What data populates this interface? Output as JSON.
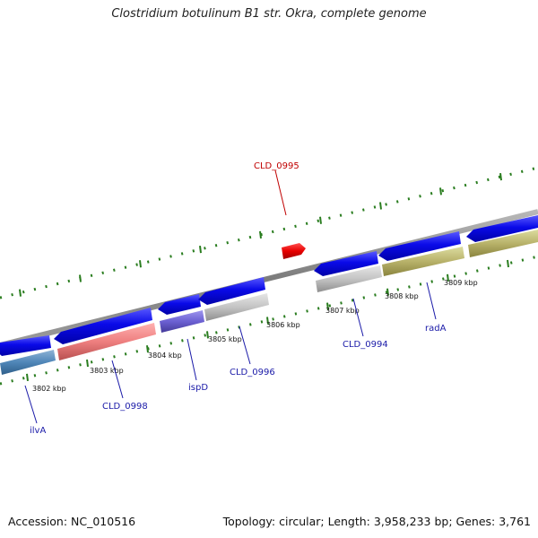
{
  "title": "Clostridium botulinum B1 str. Okra, complete genome",
  "accession": "Accession: NC_010516",
  "summary": "Topology: circular; Length: 3,958,233 bp; Genes: 3,761",
  "colors": {
    "backbone": "#8a8a8a",
    "tick": "#2a7d1f",
    "cds": "#0a0ae8",
    "highlight": "#e80000",
    "forward_label": "#c00000",
    "reverse_label": "#1a1aa8"
  },
  "kbp_labels": [
    "3802 kbp",
    "3803 kbp",
    "3804 kbp",
    "3805 kbp",
    "3806 kbp",
    "3807 kbp",
    "3808 kbp",
    "3809 kbp"
  ],
  "gene_labels": [
    {
      "name": "CLD_0995",
      "strand": "forward"
    },
    {
      "name": "ilvA",
      "strand": "reverse"
    },
    {
      "name": "CLD_0998",
      "strand": "reverse"
    },
    {
      "name": "ispD",
      "strand": "reverse"
    },
    {
      "name": "CLD_0996",
      "strand": "reverse"
    },
    {
      "name": "CLD_0994",
      "strand": "reverse"
    },
    {
      "name": "radA",
      "strand": "reverse"
    }
  ]
}
